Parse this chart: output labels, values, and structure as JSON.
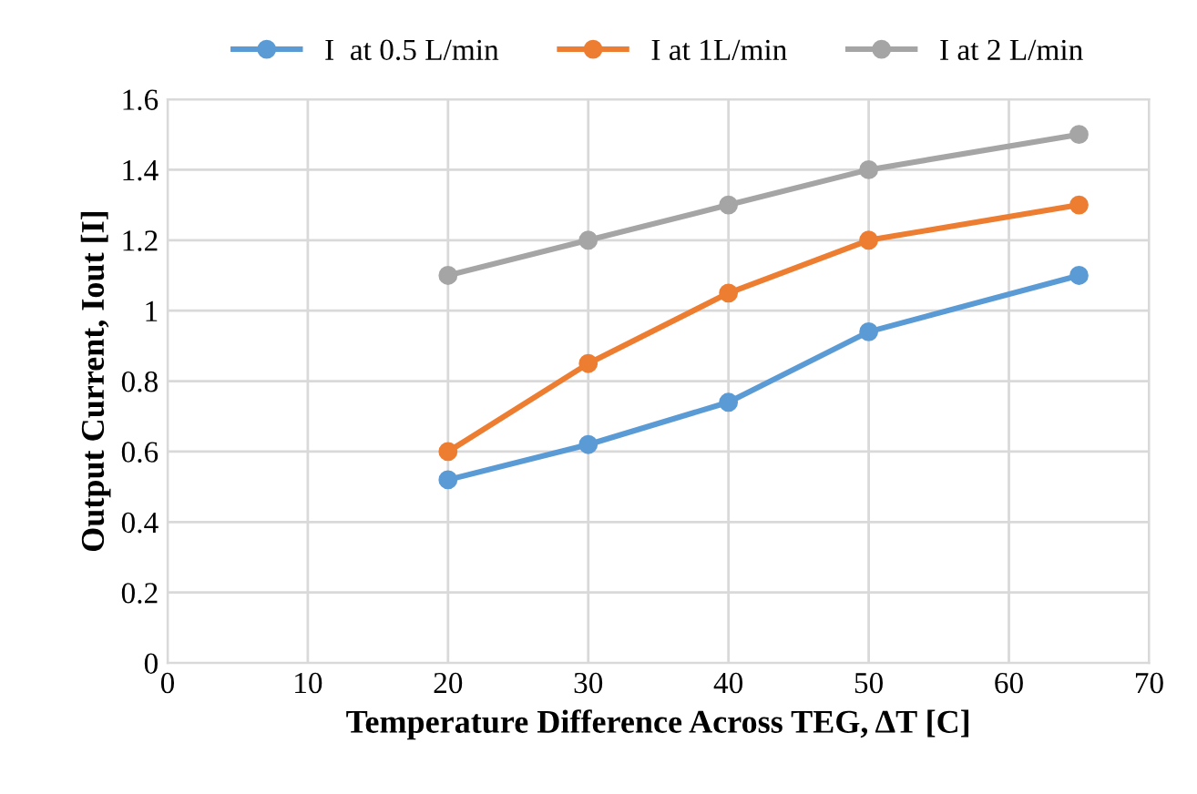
{
  "chart_data": {
    "type": "line",
    "xlabel": "Temperature Difference Across TEG, ΔT [C]",
    "ylabel": "Output Current, Iout [I]",
    "x": [
      20,
      30,
      40,
      50,
      65
    ],
    "series": [
      {
        "name": "I  at 0.5 L/min",
        "color": "#5b9bd5",
        "values": [
          0.52,
          0.62,
          0.74,
          0.94,
          1.1
        ]
      },
      {
        "name": "I at 1L/min",
        "color": "#ed7d31",
        "values": [
          0.6,
          0.85,
          1.05,
          1.2,
          1.3
        ]
      },
      {
        "name": "I at 2 L/min",
        "color": "#a5a5a5",
        "values": [
          1.1,
          1.2,
          1.3,
          1.4,
          1.5
        ]
      }
    ],
    "xlim": [
      0,
      70
    ],
    "xticks": [
      0,
      10,
      20,
      30,
      40,
      50,
      60,
      70
    ],
    "ylim": [
      0,
      1.6
    ],
    "yticks": [
      0,
      0.2,
      0.4,
      0.6,
      0.8,
      1,
      1.2,
      1.4,
      1.6
    ],
    "grid": true,
    "legend": "top",
    "marker": "circle",
    "line_style": "solid"
  }
}
